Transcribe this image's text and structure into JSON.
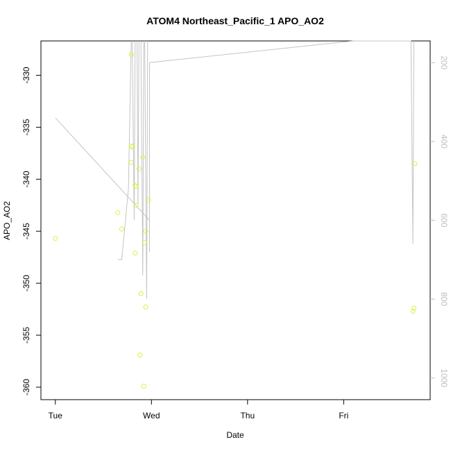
{
  "chart_data": {
    "type": "scatter",
    "title": "ATOM4 Northeast_Pacific_1 APO_AO2",
    "xlabel": "Date",
    "ylabel": "APO_AO2",
    "x_tick_labels": [
      "Tue",
      "Wed",
      "Thu",
      "Fri"
    ],
    "x_ticks_days": [
      0,
      1,
      2,
      3
    ],
    "xlim_days": [
      -0.15,
      3.9
    ],
    "ylim": [
      -361.2,
      -326.7
    ],
    "y_ticks": [
      -330,
      -335,
      -340,
      -345,
      -350,
      -355,
      -360
    ],
    "y_tick_labels": [
      "-330",
      "-335",
      "-340",
      "-345",
      "-350",
      "-355",
      "-360"
    ],
    "right_axis": {
      "ticks": [
        200,
        400,
        600,
        800,
        1000
      ],
      "tick_labels": [
        "200",
        "400",
        "600",
        "800",
        "1000"
      ],
      "lim": [
        1055,
        145
      ],
      "color": "#bdbdbd"
    },
    "grid": false,
    "legend": "none",
    "series": [
      {
        "marker": "circle-open",
        "color": "#d8f24a",
        "points": [
          {
            "x": 0.0,
            "y": -345.7
          },
          {
            "x": 0.65,
            "y": -343.2
          },
          {
            "x": 0.69,
            "y": -344.8
          },
          {
            "x": 0.79,
            "y": -328.0
          },
          {
            "x": 0.79,
            "y": -336.8
          },
          {
            "x": 0.8,
            "y": -336.9
          },
          {
            "x": 0.79,
            "y": -338.4
          },
          {
            "x": 0.83,
            "y": -340.6
          },
          {
            "x": 0.84,
            "y": -340.7
          },
          {
            "x": 0.84,
            "y": -342.5
          },
          {
            "x": 0.83,
            "y": -347.1
          },
          {
            "x": 0.87,
            "y": -339.0
          },
          {
            "x": 0.91,
            "y": -337.9
          },
          {
            "x": 0.94,
            "y": -345.0
          },
          {
            "x": 0.93,
            "y": -346.1
          },
          {
            "x": 0.97,
            "y": -342.0
          },
          {
            "x": 0.89,
            "y": -351.0
          },
          {
            "x": 0.94,
            "y": -352.3
          },
          {
            "x": 0.88,
            "y": -356.9
          },
          {
            "x": 0.92,
            "y": -359.9
          },
          {
            "x": 3.74,
            "y": -338.5
          },
          {
            "x": 3.73,
            "y": -352.4
          },
          {
            "x": 3.72,
            "y": -352.7
          }
        ]
      },
      {
        "marker": "line",
        "color": "#c4c4c4",
        "axis": "right",
        "points": [
          {
            "x": 0.0,
            "y": 340
          },
          {
            "x": 0.98,
            "y": 600
          },
          {
            "x": 0.98,
            "y": 680
          },
          {
            "x": 0.98,
            "y": 200
          },
          {
            "x": 3.1,
            "y": 145
          },
          {
            "x": 3.7,
            "y": 145
          },
          {
            "x": 3.72,
            "y": 660
          },
          {
            "x": 3.73,
            "y": 100
          }
        ],
        "extra_segments": [
          [
            {
              "x": 0.65,
              "y": 700
            },
            {
              "x": 0.69,
              "y": 700
            },
            {
              "x": 0.76,
              "y": 520
            },
            {
              "x": 0.79,
              "y": 80
            }
          ],
          [
            {
              "x": 0.8,
              "y": 90
            },
            {
              "x": 0.82,
              "y": 600
            },
            {
              "x": 0.83,
              "y": 90
            }
          ],
          [
            {
              "x": 0.85,
              "y": 90
            },
            {
              "x": 0.86,
              "y": 560
            },
            {
              "x": 0.87,
              "y": 90
            }
          ],
          [
            {
              "x": 0.89,
              "y": 90
            },
            {
              "x": 0.91,
              "y": 740
            },
            {
              "x": 0.92,
              "y": 90
            }
          ],
          [
            {
              "x": 0.93,
              "y": 90
            },
            {
              "x": 0.95,
              "y": 800
            },
            {
              "x": 0.96,
              "y": 90
            }
          ]
        ]
      }
    ]
  }
}
